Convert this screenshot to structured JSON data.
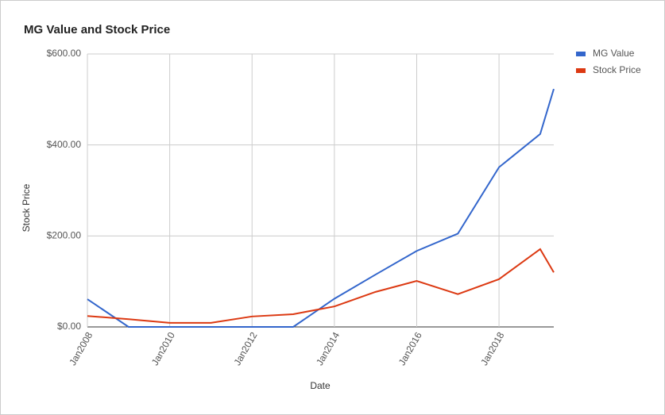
{
  "chart_data": {
    "type": "line",
    "title": "MG Value and Stock Price",
    "x_label": "Date",
    "y_label": "Stock Price",
    "x": [
      2008,
      2009,
      2010,
      2011,
      2012,
      2013,
      2014,
      2015,
      2016,
      2017,
      2018,
      2019,
      2019.33
    ],
    "series": [
      {
        "name": "MG Value",
        "color": "#3366cc",
        "values": [
          61,
          0,
          0,
          0,
          0,
          0,
          62,
          115,
          167,
          205,
          351,
          424,
          523
        ]
      },
      {
        "name": "Stock Price",
        "color": "#dc3912",
        "values": [
          24,
          17,
          9,
          9,
          23,
          28,
          45,
          77,
          101,
          72,
          105,
          171,
          120
        ]
      }
    ],
    "xlim": [
      2008,
      2019.33
    ],
    "xticks": [
      {
        "value": 2008,
        "label": "Jan2008"
      },
      {
        "value": 2010,
        "label": "Jan2010"
      },
      {
        "value": 2012,
        "label": "Jan2012"
      },
      {
        "value": 2014,
        "label": "Jan2014"
      },
      {
        "value": 2016,
        "label": "Jan2016"
      },
      {
        "value": 2018,
        "label": "Jan2018"
      }
    ],
    "ylim": [
      0,
      600
    ],
    "yticks": [
      {
        "value": 0,
        "label": "$0.00"
      },
      {
        "value": 200,
        "label": "$200.00"
      },
      {
        "value": 400,
        "label": "$400.00"
      },
      {
        "value": 600,
        "label": "$600.00"
      }
    ],
    "grid": true,
    "legend": "right"
  }
}
